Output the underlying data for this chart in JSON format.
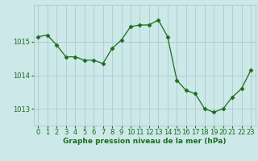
{
  "x": [
    0,
    1,
    2,
    3,
    4,
    5,
    6,
    7,
    8,
    9,
    10,
    11,
    12,
    13,
    14,
    15,
    16,
    17,
    18,
    19,
    20,
    21,
    22,
    23
  ],
  "y": [
    1015.15,
    1015.2,
    1014.9,
    1014.55,
    1014.55,
    1014.45,
    1014.45,
    1014.35,
    1014.8,
    1015.05,
    1015.45,
    1015.5,
    1015.5,
    1015.65,
    1015.15,
    1013.85,
    1013.55,
    1013.45,
    1013.0,
    1012.9,
    1013.0,
    1013.35,
    1013.6,
    1014.15
  ],
  "line_color": "#1a6e1a",
  "marker": "D",
  "marker_size": 2.5,
  "bg_color": "#cce8e8",
  "grid_color": "#aacccc",
  "yticks": [
    1013,
    1014,
    1015
  ],
  "xticks": [
    0,
    1,
    2,
    3,
    4,
    5,
    6,
    7,
    8,
    9,
    10,
    11,
    12,
    13,
    14,
    15,
    16,
    17,
    18,
    19,
    20,
    21,
    22,
    23
  ],
  "xlabel": "Graphe pression niveau de la mer (hPa)",
  "tick_color": "#1a6e1a",
  "ylim": [
    1012.5,
    1016.1
  ],
  "xlim": [
    -0.5,
    23.5
  ],
  "label_fontsize": 6.5,
  "tick_fontsize": 6.0
}
